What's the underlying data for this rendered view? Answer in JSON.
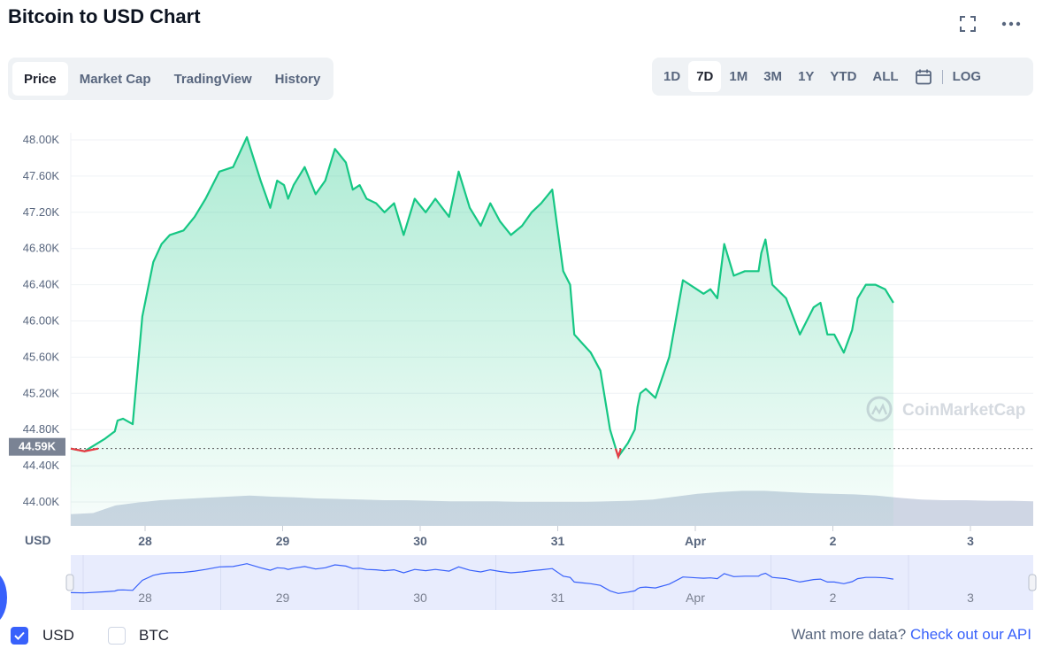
{
  "header": {
    "title": "Bitcoin to USD Chart",
    "icons": [
      "fullscreen-icon",
      "more-icon"
    ]
  },
  "tabs": [
    {
      "label": "Price",
      "active": true
    },
    {
      "label": "Market Cap",
      "active": false
    },
    {
      "label": "TradingView",
      "active": false
    },
    {
      "label": "History",
      "active": false
    }
  ],
  "ranges": [
    {
      "label": "1D",
      "active": false
    },
    {
      "label": "7D",
      "active": true
    },
    {
      "label": "1M",
      "active": false
    },
    {
      "label": "3M",
      "active": false
    },
    {
      "label": "1Y",
      "active": false
    },
    {
      "label": "YTD",
      "active": false
    },
    {
      "label": "ALL",
      "active": false
    }
  ],
  "log_label": "LOG",
  "currency_label": "USD",
  "watermark": "CoinMarketCap",
  "chart_data": {
    "type": "area",
    "x_tick_labels": [
      "28",
      "29",
      "30",
      "31",
      "Apr",
      "2",
      "3"
    ],
    "y_tick_labels": [
      "44.00K",
      "44.40K",
      "44.80K",
      "45.20K",
      "45.60K",
      "46.00K",
      "46.40K",
      "46.80K",
      "47.20K",
      "47.60K",
      "48.00K"
    ],
    "ylim": [
      44000,
      48000
    ],
    "current_price_label": "44.59K",
    "current_price": 44590,
    "grid": true,
    "line_color": "#16c784",
    "down_color": "#ea3943",
    "x_day": [
      0.0,
      0.1,
      0.25,
      0.32,
      0.34,
      0.38,
      0.45,
      0.52,
      0.6,
      0.66,
      0.72,
      0.82,
      0.9,
      0.98,
      1.08,
      1.18,
      1.28,
      1.38,
      1.45,
      1.5,
      1.55,
      1.58,
      1.62,
      1.7,
      1.78,
      1.85,
      1.92,
      2.0,
      2.05,
      2.1,
      2.15,
      2.22,
      2.28,
      2.35,
      2.42,
      2.5,
      2.58,
      2.65,
      2.75,
      2.82,
      2.9,
      2.98,
      3.05,
      3.12,
      3.2,
      3.28,
      3.35,
      3.42,
      3.5,
      3.58,
      3.63,
      3.66,
      3.72,
      3.78,
      3.85,
      3.92,
      3.98,
      4.05,
      4.1,
      4.12,
      4.14,
      4.18,
      4.25,
      4.35,
      4.45,
      4.55,
      4.6,
      4.65,
      4.7,
      4.75,
      4.82,
      4.9,
      5.0,
      5.02,
      5.05,
      5.1,
      5.2,
      5.3,
      5.4,
      5.45,
      5.5,
      5.55,
      5.62,
      5.68,
      5.72,
      5.78,
      5.85,
      5.92,
      5.98
    ],
    "y_value": [
      44590,
      44560,
      44700,
      44780,
      44900,
      44920,
      44860,
      46050,
      46650,
      46850,
      46950,
      47000,
      47150,
      47350,
      47650,
      47700,
      48030,
      47550,
      47250,
      47550,
      47500,
      47350,
      47500,
      47700,
      47400,
      47550,
      47900,
      47750,
      47450,
      47500,
      47350,
      47300,
      47200,
      47300,
      46950,
      47350,
      47200,
      47350,
      47150,
      47650,
      47250,
      47050,
      47300,
      47100,
      46950,
      47050,
      47200,
      47300,
      47450,
      46550,
      46400,
      45850,
      45750,
      45650,
      45450,
      44800,
      44500,
      44650,
      44800,
      45050,
      45200,
      45250,
      45150,
      45600,
      46450,
      46350,
      46300,
      46350,
      46250,
      46850,
      46500,
      46550,
      46550,
      46750,
      46900,
      46400,
      46250,
      45850,
      46150,
      46200,
      45850,
      45850,
      45650,
      45900,
      46250,
      46400,
      46400,
      46350,
      46200
    ],
    "x_day_at_28": 0.54,
    "volume_fraction": [
      0.2,
      0.22,
      0.35,
      0.4,
      0.44,
      0.46,
      0.48,
      0.5,
      0.52,
      0.5,
      0.49,
      0.47,
      0.46,
      0.45,
      0.44,
      0.44,
      0.43,
      0.42,
      0.42,
      0.42,
      0.41,
      0.41,
      0.41,
      0.41,
      0.42,
      0.43,
      0.45,
      0.5,
      0.55,
      0.58,
      0.6,
      0.6,
      0.58,
      0.56,
      0.55,
      0.54,
      0.52,
      0.48,
      0.45,
      0.44,
      0.44,
      0.43,
      0.43,
      0.42
    ]
  },
  "legend": {
    "usd_label": "USD",
    "btc_label": "BTC",
    "usd_checked": true,
    "btc_checked": false
  },
  "footer": {
    "prefix": "Want more data?",
    "link_label": "Check out our API"
  }
}
